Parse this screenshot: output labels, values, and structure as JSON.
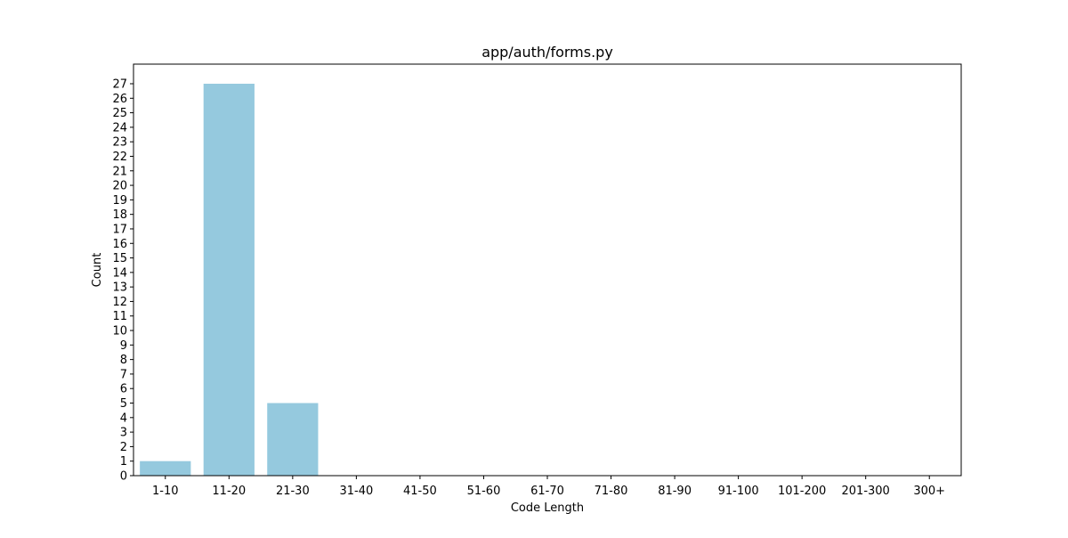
{
  "chart_data": {
    "type": "bar",
    "title": "app/auth/forms.py",
    "xlabel": "Code Length",
    "ylabel": "Count",
    "categories": [
      "1-10",
      "11-20",
      "21-30",
      "31-40",
      "41-50",
      "51-60",
      "61-70",
      "71-80",
      "81-90",
      "91-100",
      "101-200",
      "201-300",
      "300+"
    ],
    "values": [
      1,
      27,
      5,
      0,
      0,
      0,
      0,
      0,
      0,
      0,
      0,
      0,
      0
    ],
    "ylim": [
      0,
      28.35
    ],
    "yticks": [
      0,
      1,
      2,
      3,
      4,
      5,
      6,
      7,
      8,
      9,
      10,
      11,
      12,
      13,
      14,
      15,
      16,
      17,
      18,
      19,
      20,
      21,
      22,
      23,
      24,
      25,
      26,
      27
    ],
    "grid": false,
    "legend": "none",
    "bar_color": "#95c9de"
  }
}
